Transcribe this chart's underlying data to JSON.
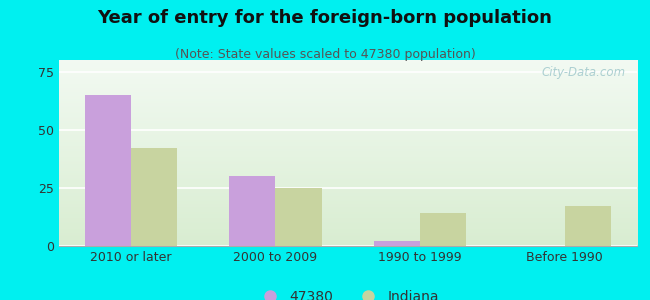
{
  "title": "Year of entry for the foreign-born population",
  "subtitle": "(Note: State values scaled to 47380 population)",
  "categories": [
    "2010 or later",
    "2000 to 2009",
    "1990 to 1999",
    "Before 1990"
  ],
  "values_47380": [
    65,
    30,
    2,
    0
  ],
  "values_indiana": [
    42,
    25,
    14,
    17
  ],
  "color_47380": "#c9a0dc",
  "color_indiana": "#c8d4a0",
  "background_color": "#00f0f0",
  "ylim": [
    0,
    80
  ],
  "yticks": [
    0,
    25,
    50,
    75
  ],
  "bar_width": 0.32,
  "legend_label_1": "47380",
  "legend_label_2": "Indiana",
  "title_fontsize": 13,
  "subtitle_fontsize": 9,
  "tick_fontsize": 9,
  "legend_fontsize": 10,
  "watermark": "City-Data.com"
}
